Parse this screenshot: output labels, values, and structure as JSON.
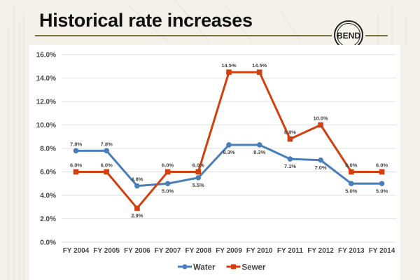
{
  "slide": {
    "title": "Historical rate increases",
    "logo_text": "BEND"
  },
  "chart_data": {
    "type": "line",
    "title": "",
    "xlabel": "",
    "ylabel": "",
    "categories": [
      "FY 2004",
      "FY 2005",
      "FY 2006",
      "FY 2007",
      "FY 2008",
      "FY 2009",
      "FY 2010",
      "FY 2011",
      "FY 2012",
      "FY 2013",
      "FY 2014"
    ],
    "ylim": [
      0,
      16
    ],
    "yticks": [
      0,
      2,
      4,
      6,
      8,
      10,
      12,
      14,
      16
    ],
    "ytick_labels": [
      "0.0%",
      "2.0%",
      "4.0%",
      "6.0%",
      "8.0%",
      "10.0%",
      "12.0%",
      "14.0%",
      "16.0%"
    ],
    "grid": true,
    "legend_position": "bottom",
    "series": [
      {
        "name": "Water",
        "color": "#4a7ebb",
        "marker": "circle",
        "values": [
          7.8,
          7.8,
          4.8,
          5.0,
          5.5,
          8.3,
          8.3,
          7.1,
          7.0,
          5.0,
          5.0
        ],
        "labels": [
          "7.8%",
          "7.8%",
          "4.8%",
          "5.0%",
          "5.5%",
          "8.3%",
          "8.3%",
          "7.1%",
          "7.0%",
          "5.0%",
          "5.0%"
        ],
        "label_pos": [
          "above",
          "above",
          "above",
          "below",
          "below",
          "below",
          "below",
          "below",
          "below",
          "below",
          "below"
        ]
      },
      {
        "name": "Sewer",
        "color": "#d04010",
        "marker": "square",
        "values": [
          6.0,
          6.0,
          2.9,
          6.0,
          6.0,
          14.5,
          14.5,
          8.8,
          10.0,
          6.0,
          6.0
        ],
        "labels": [
          "6.0%",
          "6.0%",
          "2.9%",
          "6.0%",
          "6.0%",
          "14.5%",
          "14.5%",
          "8.8%",
          "10.0%",
          "6.0%",
          "6.0%"
        ],
        "label_pos": [
          "above",
          "above",
          "below",
          "above",
          "above",
          "above",
          "above",
          "above",
          "above",
          "above",
          "above"
        ]
      }
    ]
  }
}
